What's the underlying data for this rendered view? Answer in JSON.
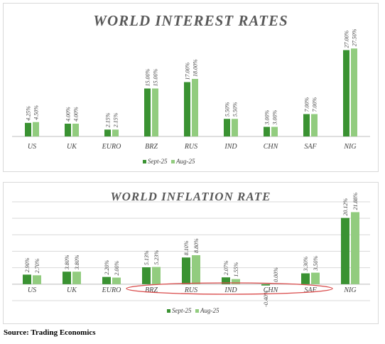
{
  "source": "Source: Trading Economics",
  "colors": {
    "sept": "#3a9232",
    "aug": "#92cc7f",
    "ellipse": "#d94a4a",
    "axis": "#bfbfbf",
    "grid": "#d9d9d9"
  },
  "chart_data": [
    {
      "type": "bar",
      "title": "WORLD INTEREST RATES",
      "categories": [
        "US",
        "UK",
        "EURO",
        "BRZ",
        "RUS",
        "IND",
        "CHN",
        "SAF",
        "NIG"
      ],
      "series": [
        {
          "name": "Sept-25",
          "values": [
            4.25,
            4.0,
            2.15,
            15.0,
            17.0,
            5.5,
            3.0,
            7.0,
            27.0
          ],
          "labels": [
            "4.25%",
            "4.00%",
            "2.15%",
            "15.00%",
            "17.00%",
            "5.50%",
            "3.00%",
            "7.00%",
            "27.00%"
          ]
        },
        {
          "name": "Aug-25",
          "values": [
            4.5,
            4.0,
            2.15,
            15.0,
            18.0,
            5.5,
            3.0,
            7.0,
            27.5
          ],
          "labels": [
            "4.50%",
            "4.00%",
            "2.15%",
            "15.00%",
            "18.00%",
            "5.50%",
            "3.00%",
            "7.00%",
            "27.50%"
          ]
        }
      ],
      "ylim": [
        0,
        30
      ],
      "grid": false,
      "legend": "bottom"
    },
    {
      "type": "bar",
      "title": "WORLD INFLATION RATE",
      "categories": [
        "US",
        "UK",
        "EURO",
        "BRZ",
        "RUS",
        "IND",
        "CHN",
        "SAF",
        "NIG"
      ],
      "series": [
        {
          "name": "Sept-25",
          "values": [
            2.9,
            3.8,
            2.2,
            5.13,
            8.1,
            2.07,
            -0.4,
            3.3,
            20.12
          ],
          "labels": [
            "2.90%",
            "3.80%",
            "2.20%",
            "5.13%",
            "8.10%",
            "2.07%",
            "-0.40%",
            "3.30%",
            "20.12%"
          ]
        },
        {
          "name": "Aug-25",
          "values": [
            2.7,
            3.8,
            2.0,
            5.23,
            8.8,
            1.55,
            0.0,
            3.5,
            21.88
          ],
          "labels": [
            "2.70%",
            "3.80%",
            "2.00%",
            "5.23%",
            "8.80%",
            "1.55%",
            "0.00%",
            "3.50%",
            "21.88%"
          ]
        }
      ],
      "ylim": [
        -5,
        25
      ],
      "grid": true,
      "legend": "bottom",
      "annotation": "red ellipse highlighting BRZ, RUS, IND, CHN, SAF"
    }
  ]
}
